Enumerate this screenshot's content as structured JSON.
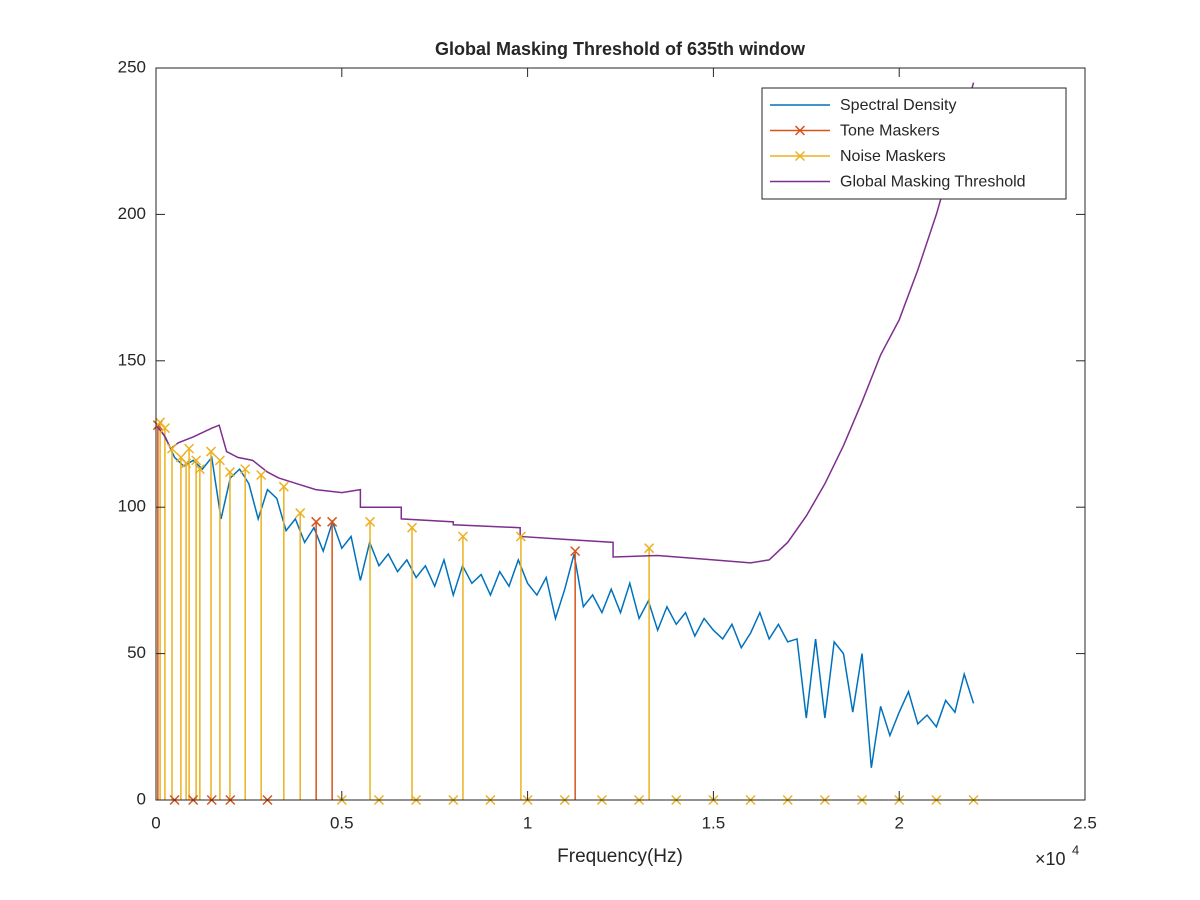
{
  "chart_data": {
    "type": "line",
    "title": "Global Masking Threshold of 635th window",
    "x_label": "Frequency(Hz)",
    "x_multiplier": "×10",
    "x_multiplier_exponent": "4",
    "xlim": [
      0,
      2.5
    ],
    "xticks": [
      0,
      0.5,
      1,
      1.5,
      2,
      2.5
    ],
    "ylim": [
      0,
      250
    ],
    "yticks": [
      0,
      50,
      100,
      150,
      200,
      250
    ],
    "legend_position": "top-right",
    "series": [
      {
        "name": "Spectral Density",
        "kind": "line",
        "color": "#0072BD",
        "x": [
          0,
          0.025,
          0.05,
          0.075,
          0.1,
          0.125,
          0.15,
          0.175,
          0.2,
          0.225,
          0.25,
          0.275,
          0.3,
          0.325,
          0.35,
          0.375,
          0.4,
          0.425,
          0.45,
          0.475,
          0.5,
          0.525,
          0.55,
          0.575,
          0.6,
          0.625,
          0.65,
          0.675,
          0.7,
          0.725,
          0.75,
          0.775,
          0.8,
          0.825,
          0.85,
          0.875,
          0.9,
          0.925,
          0.95,
          0.975,
          1.0,
          1.025,
          1.05,
          1.075,
          1.1,
          1.125,
          1.15,
          1.175,
          1.2,
          1.225,
          1.25,
          1.275,
          1.3,
          1.325,
          1.35,
          1.375,
          1.4,
          1.425,
          1.45,
          1.475,
          1.5,
          1.525,
          1.55,
          1.575,
          1.6,
          1.625,
          1.65,
          1.675,
          1.7,
          1.725,
          1.75,
          1.775,
          1.8,
          1.825,
          1.85,
          1.875,
          1.9,
          1.925,
          1.95,
          1.975,
          2.0,
          2.025,
          2.05,
          2.075,
          2.1,
          2.125,
          2.15,
          2.175,
          2.2
        ],
        "values": [
          128,
          124,
          117,
          114,
          116,
          113,
          117,
          96,
          110,
          113,
          108,
          96,
          106,
          103,
          92,
          96,
          88,
          93,
          85,
          95,
          86,
          90,
          75,
          88,
          80,
          84,
          78,
          82,
          76,
          80,
          73,
          82,
          70,
          80,
          74,
          77,
          70,
          78,
          73,
          82,
          74,
          70,
          76,
          62,
          72,
          84,
          66,
          70,
          64,
          72,
          64,
          74,
          62,
          68,
          58,
          66,
          60,
          64,
          56,
          62,
          58,
          55,
          60,
          52,
          57,
          64,
          55,
          60,
          54,
          55,
          28,
          55,
          28,
          54,
          50,
          30,
          50,
          11,
          32,
          22,
          30,
          37,
          26,
          29,
          25,
          34,
          30,
          43,
          33
        ]
      },
      {
        "name": "Tone Maskers",
        "kind": "stem",
        "marker": "x",
        "color": "#D95319",
        "x": [
          0.005,
          0.05,
          0.1,
          0.15,
          0.2,
          0.3,
          0.431,
          0.474,
          1.128
        ],
        "values": [
          128,
          0,
          0,
          0,
          0,
          0,
          95,
          95,
          85
        ]
      },
      {
        "name": "Noise Maskers",
        "kind": "stem",
        "marker": "x",
        "color": "#EDB120",
        "x": [
          0.011,
          0.024,
          0.043,
          0.067,
          0.081,
          0.089,
          0.108,
          0.118,
          0.148,
          0.172,
          0.199,
          0.24,
          0.283,
          0.344,
          0.388,
          0.5,
          0.576,
          0.6,
          0.689,
          0.7,
          0.8,
          0.826,
          0.9,
          0.982,
          1.0,
          1.1,
          1.2,
          1.3,
          1.327,
          1.4,
          1.5,
          1.6,
          1.7,
          1.8,
          1.9,
          2.0,
          2.1,
          2.2
        ],
        "values": [
          129,
          127,
          120,
          117,
          115,
          120,
          116,
          113,
          119,
          116,
          112,
          113,
          111,
          107,
          98,
          0,
          95,
          0,
          93,
          0,
          0,
          90,
          0,
          90,
          0,
          0,
          0,
          0,
          86,
          0,
          0,
          0,
          0,
          0,
          0,
          0,
          0,
          0
        ]
      },
      {
        "name": "Global Masking Threshold",
        "kind": "line",
        "color": "#7E2F8E",
        "x": [
          0,
          0.02,
          0.04,
          0.06,
          0.1,
          0.15,
          0.17,
          0.19,
          0.22,
          0.26,
          0.3,
          0.33,
          0.38,
          0.43,
          0.5,
          0.55,
          0.55,
          0.66,
          0.66,
          0.8,
          0.8,
          0.98,
          0.98,
          1.1,
          1.23,
          1.23,
          1.35,
          1.5,
          1.6,
          1.65,
          1.7,
          1.75,
          1.8,
          1.85,
          1.9,
          1.95,
          2.0,
          2.05,
          2.1,
          2.15,
          2.2
        ],
        "values": [
          128,
          125,
          120,
          122,
          124,
          127,
          128,
          119,
          117,
          116,
          112,
          110,
          108,
          106,
          105,
          106,
          100,
          100,
          96,
          95,
          94,
          93,
          90,
          89,
          88,
          83,
          83.5,
          82,
          81,
          82,
          88,
          97,
          108,
          121,
          136,
          152,
          164,
          181,
          200,
          222,
          245
        ]
      }
    ]
  }
}
